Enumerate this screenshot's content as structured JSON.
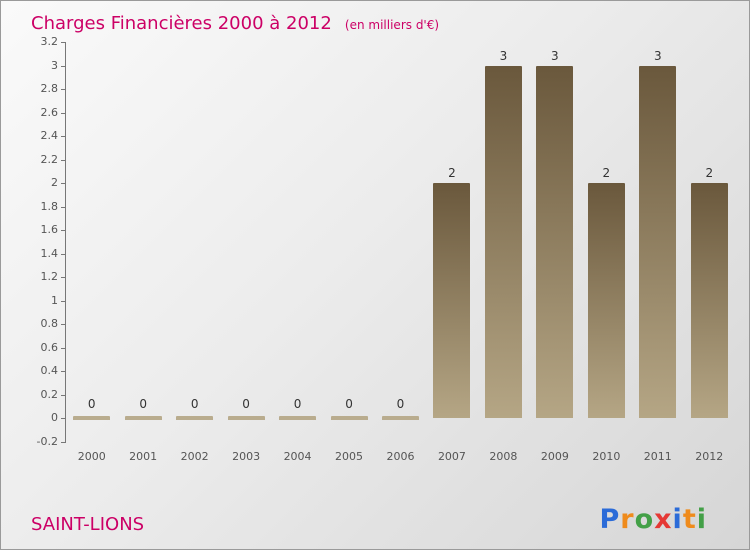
{
  "header": {
    "title": "Charges Financières 2000 à 2012",
    "subtitle": "(en milliers d'€)"
  },
  "footer": {
    "company": "SAINT-LIONS",
    "logo": {
      "letters": [
        {
          "ch": "P",
          "color": "#2b6bd8"
        },
        {
          "ch": "r",
          "color": "#ef8b1c"
        },
        {
          "ch": "o",
          "color": "#43a047"
        },
        {
          "ch": "x",
          "color": "#e53935"
        },
        {
          "ch": "i",
          "color": "#2b6bd8"
        },
        {
          "ch": "t",
          "color": "#ef8b1c"
        },
        {
          "ch": "i",
          "color": "#43a047"
        }
      ]
    }
  },
  "chart_data": {
    "type": "bar",
    "title": "Charges Financières 2000 à 2012",
    "subtitle": "(en milliers d'€)",
    "categories": [
      "2000",
      "2001",
      "2002",
      "2003",
      "2004",
      "2005",
      "2006",
      "2007",
      "2008",
      "2009",
      "2010",
      "2011",
      "2012"
    ],
    "values": [
      0,
      0,
      0,
      0,
      0,
      0,
      0,
      2,
      3,
      3,
      2,
      3,
      2
    ],
    "ylim": [
      -0.2,
      3.2
    ],
    "ytick_step": 0.2,
    "grid": false,
    "legend": false,
    "bar_gradient_top": "#6a583c",
    "bar_gradient_bottom": "#b5a685",
    "zero_bar_color": "#b9ac8e",
    "value_label_color": "#333333",
    "axis_color": "#777777",
    "tick_label_color": "#555555",
    "title_color": "#cc0066"
  }
}
